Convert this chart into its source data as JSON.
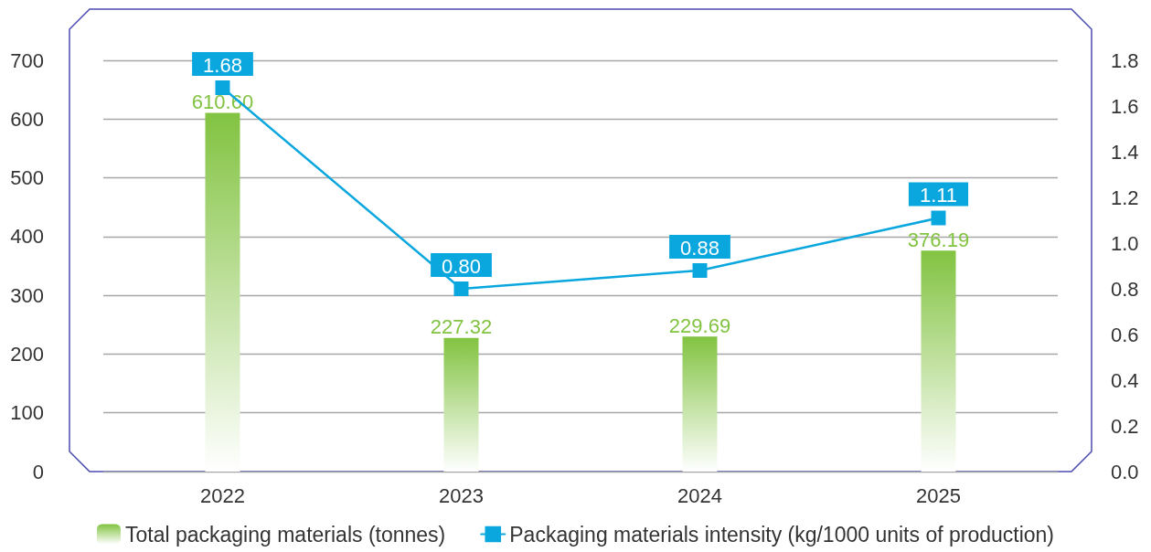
{
  "chart_data": {
    "type": "bar",
    "categories": [
      "2022",
      "2023",
      "2024",
      "2025"
    ],
    "series": [
      {
        "name": "Total packaging materials (tonnes)",
        "color": "#82c341",
        "values": [
          610.6,
          227.32,
          229.69,
          376.19
        ],
        "value_labels": [
          "610.60",
          "227.32",
          "229.69",
          "376.19"
        ]
      },
      {
        "name": "Packaging materials intensity (kg/1000 units of production)",
        "type": "line",
        "axis": "y2",
        "color": "#0aa7de",
        "values": [
          1.68,
          0.8,
          0.88,
          1.11
        ],
        "value_labels": [
          "1.68",
          "0.80",
          "0.88",
          "1.11"
        ]
      }
    ],
    "ylim": [
      0,
      700
    ],
    "yticks": [
      0,
      100,
      200,
      300,
      400,
      500,
      600,
      700
    ],
    "y2lim": [
      0,
      1.8
    ],
    "y2ticks": [
      {
        "value": 0,
        "label": "0.0"
      },
      0.2,
      0.4,
      0.6,
      0.8,
      {
        "value": 1,
        "label": "1.0"
      },
      1.2,
      1.4,
      1.6,
      1.8
    ],
    "grid": "y",
    "legend": "bottom",
    "marker": "square",
    "line_style": "solid"
  }
}
